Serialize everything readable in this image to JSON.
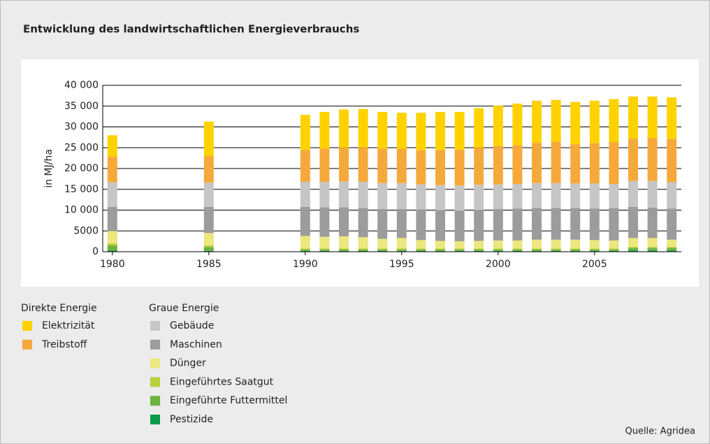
{
  "chart_data": {
    "type": "stacked_bar",
    "title": "Entwicklung des landwirtschaftlichen Energieverbrauchs",
    "y_label": "in MJ/ha",
    "source": "Quelle: Agridea",
    "x": [
      1980,
      1985,
      1990,
      1991,
      1992,
      1993,
      1994,
      1995,
      1996,
      1997,
      1998,
      1999,
      2000,
      2001,
      2002,
      2003,
      2004,
      2005,
      2006,
      2007,
      2008,
      2009
    ],
    "xlim": [
      1979.5,
      2009.5
    ],
    "xticks": [
      1980,
      1985,
      1990,
      1995,
      2000,
      2005
    ],
    "ylim": [
      0,
      40000
    ],
    "yticks": [
      0,
      5000,
      {
        "value": 10000,
        "label": "10 000"
      },
      {
        "value": 15000,
        "label": "15 000"
      },
      {
        "value": 20000,
        "label": "20 000"
      },
      {
        "value": 25000,
        "label": "25 000"
      },
      {
        "value": 30000,
        "label": "30 000"
      },
      {
        "value": 35000,
        "label": "35 000"
      },
      {
        "value": 40000,
        "label": "40 000"
      }
    ],
    "grid": true,
    "legend_groups": [
      {
        "title": "Direkte Energie",
        "series": [
          0,
          1
        ]
      },
      {
        "title": "Graue Energie",
        "series": [
          2,
          3,
          4,
          5,
          6,
          7
        ]
      }
    ],
    "series": [
      {
        "name": "Elektrizität",
        "color": "#ffd200",
        "values": [
          5200,
          8300,
          8400,
          8800,
          9200,
          9300,
          8800,
          8700,
          9000,
          9200,
          9100,
          9500,
          9700,
          10000,
          10100,
          10100,
          10200,
          10200,
          10400,
          10100,
          10000,
          10000
        ]
      },
      {
        "name": "Treibstoff",
        "color": "#f6a93b",
        "values": [
          6100,
          6400,
          7700,
          8000,
          8100,
          8200,
          8300,
          8200,
          8200,
          8400,
          8600,
          8900,
          9200,
          9300,
          9700,
          9900,
          9400,
          9700,
          10000,
          10200,
          10300,
          10400
        ]
      },
      {
        "name": "Gebäude",
        "color": "#c6c6c6",
        "values": [
          5900,
          5800,
          6000,
          6100,
          6200,
          6300,
          6200,
          6200,
          6000,
          6000,
          6000,
          6000,
          5900,
          5900,
          6000,
          6000,
          5900,
          6000,
          5800,
          6200,
          6400,
          6300
        ]
      },
      {
        "name": "Maschinen",
        "color": "#9c9c9c",
        "values": [
          5800,
          6300,
          7000,
          7100,
          7000,
          7000,
          7200,
          7000,
          7400,
          7400,
          7400,
          7500,
          7600,
          7700,
          7600,
          7600,
          7600,
          7600,
          7800,
          7500,
          7300,
          7500
        ]
      },
      {
        "name": "Dünger",
        "color": "#ece77e",
        "values": [
          3000,
          3000,
          3000,
          2800,
          2900,
          2700,
          2300,
          2500,
          2000,
          1800,
          1700,
          1800,
          1900,
          1900,
          2100,
          2100,
          2100,
          2000,
          1900,
          2100,
          2100,
          1700
        ]
      },
      {
        "name": "Eingeführtes Saatgut",
        "color": "#bad03c",
        "values": [
          500,
          400,
          300,
          300,
          300,
          300,
          300,
          300,
          300,
          300,
          300,
          300,
          300,
          300,
          300,
          300,
          300,
          300,
          300,
          300,
          300,
          300
        ]
      },
      {
        "name": "Eingeführte Futtermittel",
        "color": "#6cb33f",
        "values": [
          1200,
          900,
          300,
          300,
          300,
          300,
          300,
          300,
          300,
          300,
          300,
          300,
          300,
          300,
          300,
          300,
          300,
          300,
          300,
          600,
          600,
          600
        ]
      },
      {
        "name": "Pestizide",
        "color": "#0b9a48",
        "values": [
          300,
          200,
          200,
          200,
          200,
          200,
          200,
          200,
          200,
          200,
          200,
          200,
          200,
          200,
          200,
          200,
          200,
          200,
          200,
          300,
          300,
          300
        ]
      }
    ]
  }
}
